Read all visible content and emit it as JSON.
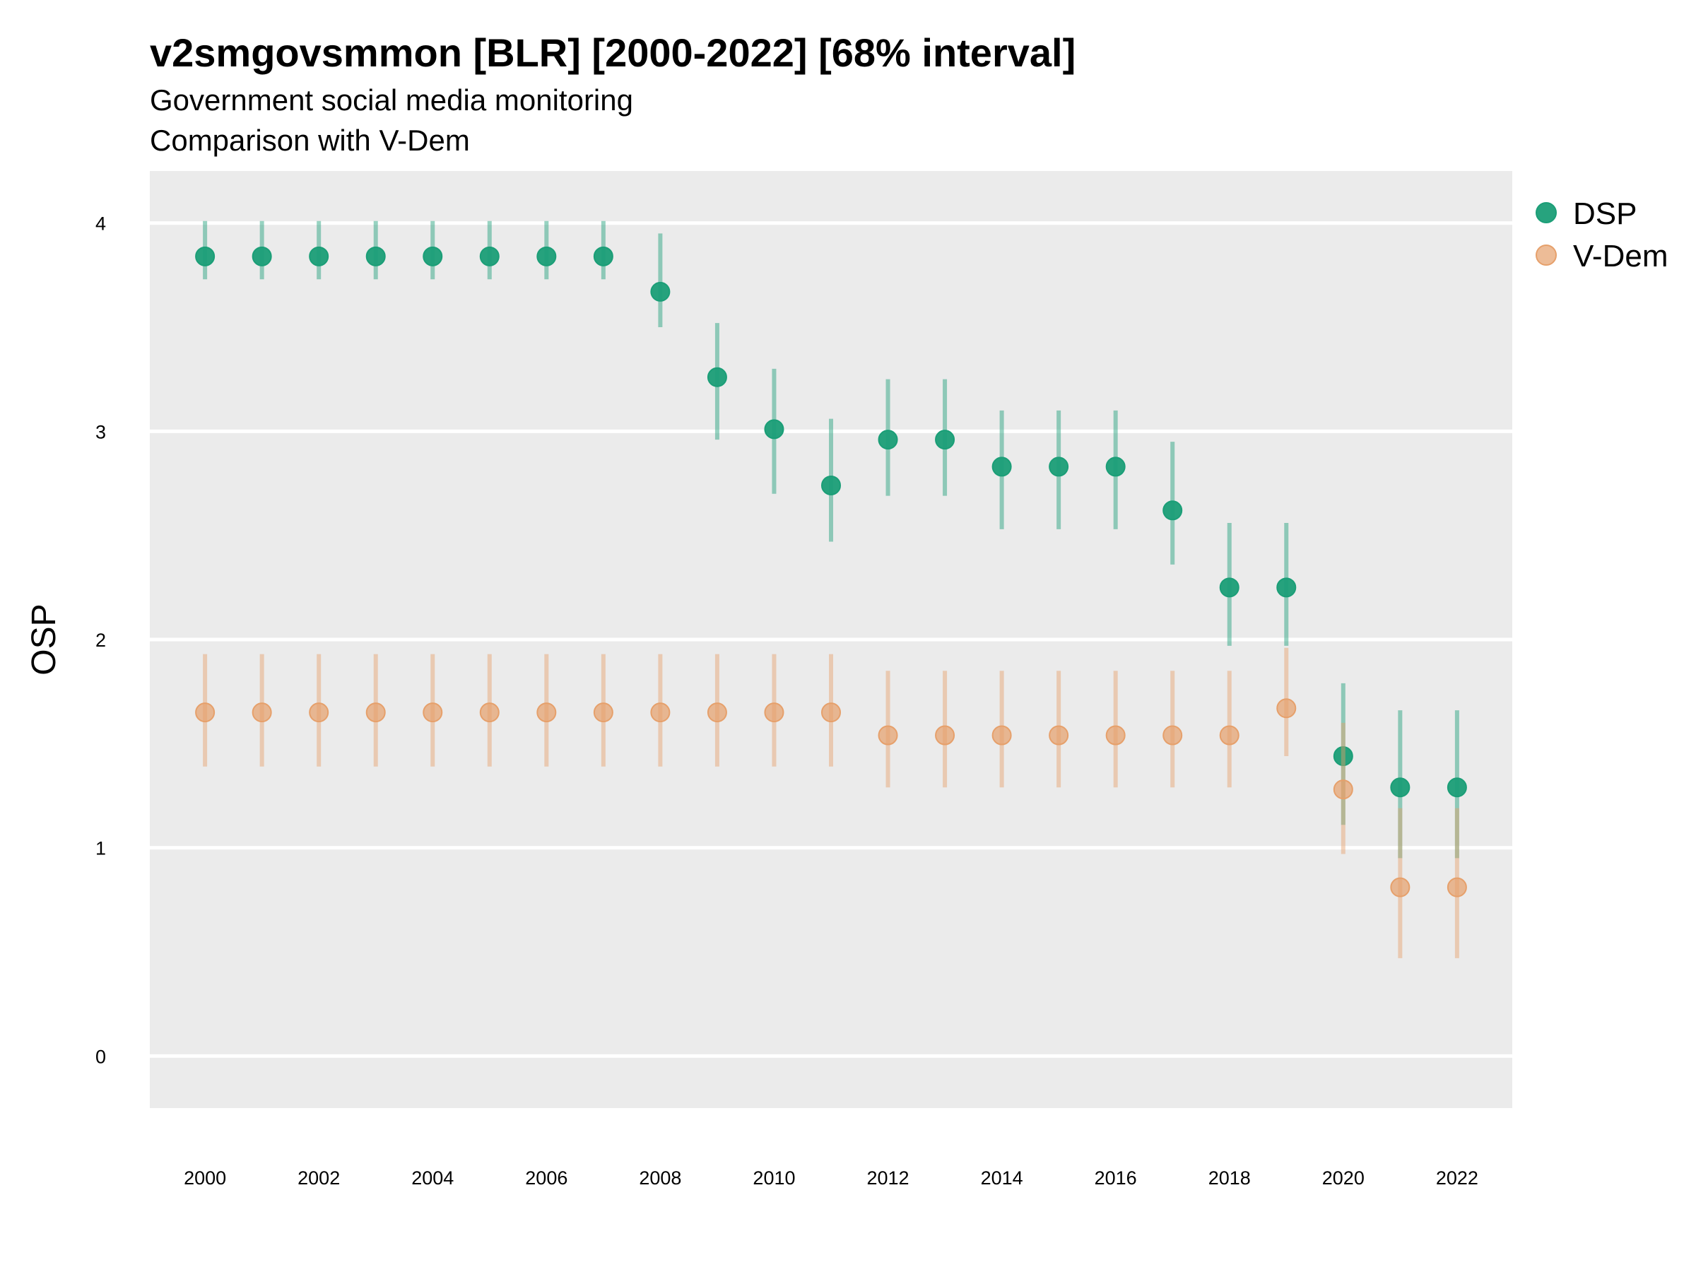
{
  "chart_data": {
    "type": "scatter",
    "title": "v2smgovsmmon [BLR] [2000-2022] [68% interval]",
    "subtitle": "Government social media monitoring",
    "subtitle2": "Comparison with V-Dem",
    "xlabel": "",
    "ylabel": "OSP",
    "xlim": [
      1999.03,
      2022.97
    ],
    "ylim": [
      -0.25,
      4.25
    ],
    "yticks": [
      0,
      1,
      2,
      3,
      4
    ],
    "xticks": [
      2000,
      2002,
      2004,
      2006,
      2008,
      2010,
      2012,
      2014,
      2016,
      2018,
      2020,
      2022
    ],
    "legend_position": "top-right",
    "series": [
      {
        "name": "DSP",
        "color": "#1b9e77",
        "x": [
          2000,
          2001,
          2002,
          2003,
          2004,
          2005,
          2006,
          2007,
          2008,
          2009,
          2010,
          2011,
          2012,
          2013,
          2014,
          2015,
          2016,
          2017,
          2018,
          2019,
          2020,
          2021,
          2022
        ],
        "y": [
          3.84,
          3.84,
          3.84,
          3.84,
          3.84,
          3.84,
          3.84,
          3.84,
          3.67,
          3.26,
          3.01,
          2.74,
          2.96,
          2.96,
          2.83,
          2.83,
          2.83,
          2.62,
          2.25,
          2.25,
          1.44,
          1.29,
          1.29
        ],
        "lower": [
          3.73,
          3.73,
          3.73,
          3.73,
          3.73,
          3.73,
          3.73,
          3.73,
          3.5,
          2.96,
          2.7,
          2.47,
          2.69,
          2.69,
          2.53,
          2.53,
          2.53,
          2.36,
          1.97,
          1.97,
          1.11,
          0.95,
          0.95
        ],
        "upper": [
          4.01,
          4.01,
          4.01,
          4.01,
          4.01,
          4.01,
          4.01,
          4.01,
          3.95,
          3.52,
          3.3,
          3.06,
          3.25,
          3.25,
          3.1,
          3.1,
          3.1,
          2.95,
          2.56,
          2.56,
          1.79,
          1.66,
          1.66
        ]
      },
      {
        "name": "V-Dem",
        "color": "#e6a06b",
        "x": [
          2000,
          2001,
          2002,
          2003,
          2004,
          2005,
          2006,
          2007,
          2008,
          2009,
          2010,
          2011,
          2012,
          2013,
          2014,
          2015,
          2016,
          2017,
          2018,
          2019,
          2020,
          2021,
          2022
        ],
        "y": [
          1.65,
          1.65,
          1.65,
          1.65,
          1.65,
          1.65,
          1.65,
          1.65,
          1.65,
          1.65,
          1.65,
          1.65,
          1.54,
          1.54,
          1.54,
          1.54,
          1.54,
          1.54,
          1.54,
          1.67,
          1.28,
          0.81,
          0.81
        ],
        "lower": [
          1.39,
          1.39,
          1.39,
          1.39,
          1.39,
          1.39,
          1.39,
          1.39,
          1.39,
          1.39,
          1.39,
          1.39,
          1.29,
          1.29,
          1.29,
          1.29,
          1.29,
          1.29,
          1.29,
          1.44,
          0.97,
          0.47,
          0.47
        ],
        "upper": [
          1.93,
          1.93,
          1.93,
          1.93,
          1.93,
          1.93,
          1.93,
          1.93,
          1.93,
          1.93,
          1.93,
          1.93,
          1.85,
          1.85,
          1.85,
          1.85,
          1.85,
          1.85,
          1.85,
          1.96,
          1.6,
          1.19,
          1.19
        ]
      }
    ]
  }
}
